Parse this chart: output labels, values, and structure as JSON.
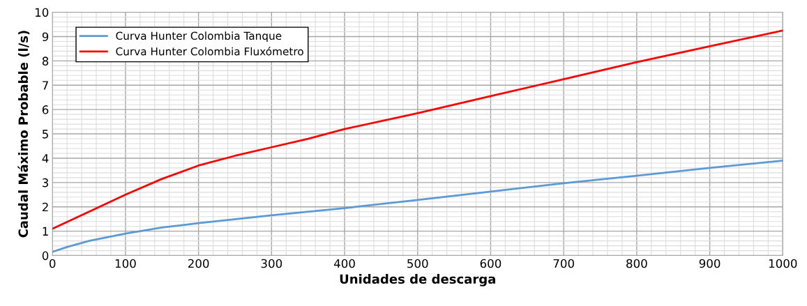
{
  "chart_data": {
    "type": "line",
    "xlabel": "Unidades de descarga",
    "ylabel": "Caudal Máximo Probable (l/s)",
    "xlim": [
      0,
      1000
    ],
    "xticks": [
      0,
      100,
      200,
      300,
      400,
      500,
      600,
      700,
      800,
      900,
      1000
    ],
    "ylim": [
      0,
      10
    ],
    "yticks": [
      0,
      1,
      2,
      3,
      4,
      5,
      6,
      7,
      8,
      9,
      10
    ],
    "grid": true,
    "legend": "top left",
    "marker": "none",
    "line_style": "solid",
    "series": [
      {
        "name": "Curva Hunter Colombia Tanque",
        "color": "#5b9bd5",
        "x": [
          0,
          20,
          50,
          100,
          150,
          200,
          300,
          400,
          500,
          600,
          700,
          800,
          900,
          1000
        ],
        "values": [
          0.15,
          0.35,
          0.6,
          0.9,
          1.15,
          1.33,
          1.65,
          1.95,
          2.28,
          2.63,
          2.97,
          3.28,
          3.6,
          3.9
        ]
      },
      {
        "name": "Curva Hunter Colombia Fluxómetro",
        "color": "#ff0000",
        "x": [
          0,
          50,
          100,
          150,
          200,
          250,
          300,
          350,
          400,
          500,
          600,
          700,
          800,
          900,
          1000
        ],
        "values": [
          1.1,
          1.8,
          2.5,
          3.15,
          3.7,
          4.1,
          4.45,
          4.8,
          5.2,
          5.85,
          6.55,
          7.25,
          7.95,
          8.6,
          9.25
        ]
      }
    ]
  }
}
